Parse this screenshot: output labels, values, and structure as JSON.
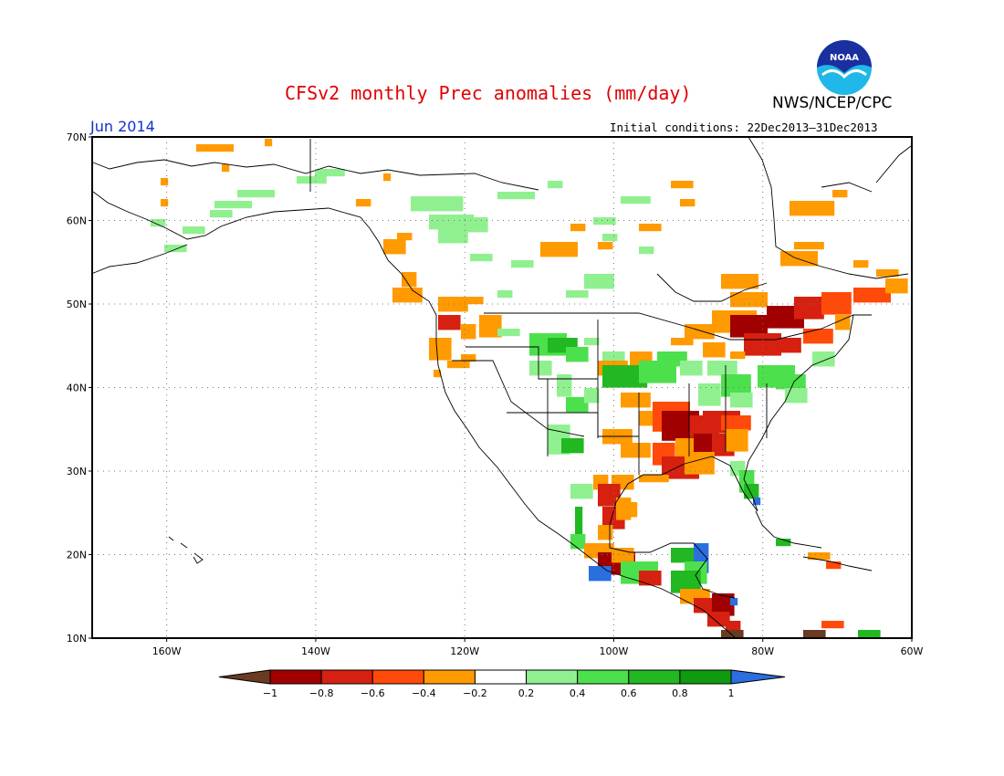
{
  "header": {
    "title": "CFSv2 monthly Prec anomalies (mm/day)",
    "agency": "NWS/NCEP/CPC",
    "logo_text": "NOAA",
    "month": "Jun 2014",
    "initial_conditions": "Initial conditions: 22Dec2013–31Dec2013"
  },
  "axes": {
    "lat_labels": [
      "70N",
      "60N",
      "50N",
      "40N",
      "30N",
      "20N",
      "10N"
    ],
    "lon_labels": [
      "160W",
      "140W",
      "120W",
      "100W",
      "80W",
      "60W"
    ]
  },
  "legend": {
    "tick_labels": [
      "−1",
      "−0.8",
      "−0.6",
      "−0.4",
      "−0.2",
      "0.2",
      "0.4",
      "0.6",
      "0.8",
      "1"
    ],
    "colors": [
      "#6b3a22",
      "#a00000",
      "#d62010",
      "#ff4a0a",
      "#ff9a00",
      "#ffffff",
      "#90f090",
      "#4ce04c",
      "#22b822",
      "#109a10",
      "#2a6ee0"
    ]
  },
  "anomaly_palette": {
    "orange": "#ff9a00",
    "red_orange": "#ff4a0a",
    "red": "#d62010",
    "dark_red": "#a00000",
    "brown": "#6b3a22",
    "light_green": "#90f090",
    "green": "#4ce04c",
    "mid_green": "#22b822",
    "dark_green": "#109a10",
    "blue": "#2a6ee0"
  }
}
